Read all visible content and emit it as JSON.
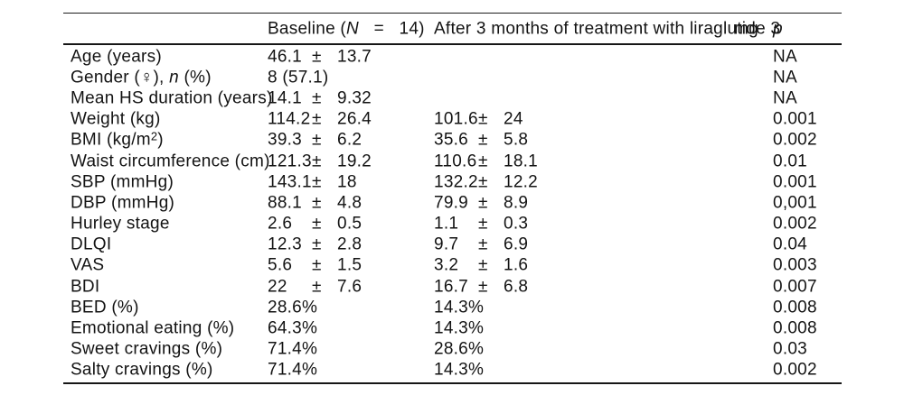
{
  "page": {
    "background_color": "#ffffff",
    "rule_color": "#1c1c1c",
    "text_color": "#131313"
  },
  "table": {
    "header": {
      "baseline": {
        "prefix": "Baseline (",
        "n_symbol": "N",
        "rest": "   =   14)"
      },
      "after": {
        "text": "After 3 months of treatment with liraglutide 3",
        "unit": "mg"
      },
      "p_label": "p"
    },
    "rows": [
      {
        "label": [
          {
            "t": "Age (years)"
          }
        ],
        "baseline": {
          "v": "46.1",
          "pm": "±",
          "sd": "13.7"
        },
        "after": null,
        "p": "NA"
      },
      {
        "label": [
          {
            "t": "Gender (♀), "
          },
          {
            "t": "n",
            "s": "i"
          },
          {
            "t": " (%)"
          }
        ],
        "baseline": {
          "v": "8 (57.1)",
          "pm": "",
          "sd": ""
        },
        "after": null,
        "p": "NA"
      },
      {
        "label": [
          {
            "t": "Mean HS duration (years)"
          }
        ],
        "baseline": {
          "v": "14.1",
          "pm": "±",
          "sd": "9.32"
        },
        "after": null,
        "p": "NA"
      },
      {
        "label": [
          {
            "t": "Weight (kg)"
          }
        ],
        "baseline": {
          "v": "114.2",
          "pm": "±",
          "sd": "26.4"
        },
        "after": {
          "v": "101.6",
          "pm": "±",
          "sd": "24"
        },
        "p": "0.001"
      },
      {
        "label": [
          {
            "t": "BMI (kg/m"
          },
          {
            "t": "2",
            "s": "sup"
          },
          {
            "t": ")"
          }
        ],
        "baseline": {
          "v": "39.3",
          "pm": "±",
          "sd": "6.2"
        },
        "after": {
          "v": "35.6",
          "pm": "±",
          "sd": "5.8"
        },
        "p": "0.002"
      },
      {
        "label": [
          {
            "t": "Waist circumference (cm)"
          }
        ],
        "baseline": {
          "v": "121.3",
          "pm": "±",
          "sd": "19.2"
        },
        "after": {
          "v": "110.6",
          "pm": "±",
          "sd": "18.1"
        },
        "p": "0.01"
      },
      {
        "label": [
          {
            "t": "SBP (mmHg)"
          }
        ],
        "baseline": {
          "v": "143.1",
          "pm": "±",
          "sd": "18"
        },
        "after": {
          "v": "132.2",
          "pm": "±",
          "sd": "12.2"
        },
        "p": "0.001"
      },
      {
        "label": [
          {
            "t": "DBP (mmHg)"
          }
        ],
        "baseline": {
          "v": "88.1",
          "pm": "±",
          "sd": "4.8"
        },
        "after": {
          "v": "79.9",
          "pm": "±",
          "sd": "8.9"
        },
        "p": "0,001"
      },
      {
        "label": [
          {
            "t": "Hurley stage"
          }
        ],
        "baseline": {
          "v": "2.6",
          "pm": "±",
          "sd": "0.5"
        },
        "after": {
          "v": "1.1",
          "pm": "±",
          "sd": "0.3"
        },
        "p": "0.002"
      },
      {
        "label": [
          {
            "t": "DLQI"
          }
        ],
        "baseline": {
          "v": "12.3",
          "pm": "±",
          "sd": "2.8"
        },
        "after": {
          "v": "9.7",
          "pm": "±",
          "sd": "6.9"
        },
        "p": "0.04"
      },
      {
        "label": [
          {
            "t": "VAS"
          }
        ],
        "baseline": {
          "v": "5.6",
          "pm": "±",
          "sd": "1.5"
        },
        "after": {
          "v": "3.2",
          "pm": "±",
          "sd": "1.6"
        },
        "p": "0.003"
      },
      {
        "label": [
          {
            "t": "BDI"
          }
        ],
        "baseline": {
          "v": "22",
          "pm": "±",
          "sd": "7.6"
        },
        "after": {
          "v": "16.7",
          "pm": "±",
          "sd": "6.8"
        },
        "p": "0.007"
      },
      {
        "label": [
          {
            "t": "BED (%)"
          }
        ],
        "baseline": {
          "v": "28.6%",
          "pm": "",
          "sd": ""
        },
        "after": {
          "v": "14.3%",
          "pm": "",
          "sd": ""
        },
        "p": "0.008"
      },
      {
        "label": [
          {
            "t": "Emotional eating (%)"
          }
        ],
        "baseline": {
          "v": "64.3%",
          "pm": "",
          "sd": ""
        },
        "after": {
          "v": "14.3%",
          "pm": "",
          "sd": ""
        },
        "p": "0.008"
      },
      {
        "label": [
          {
            "t": "Sweet cravings (%)"
          }
        ],
        "baseline": {
          "v": "71.4%",
          "pm": "",
          "sd": ""
        },
        "after": {
          "v": "28.6%",
          "pm": "",
          "sd": ""
        },
        "p": "0.03"
      },
      {
        "label": [
          {
            "t": "Salty cravings (%)"
          }
        ],
        "baseline": {
          "v": "71.4%",
          "pm": "",
          "sd": ""
        },
        "after": {
          "v": "14.3%",
          "pm": "",
          "sd": ""
        },
        "p": "0.002"
      }
    ]
  }
}
